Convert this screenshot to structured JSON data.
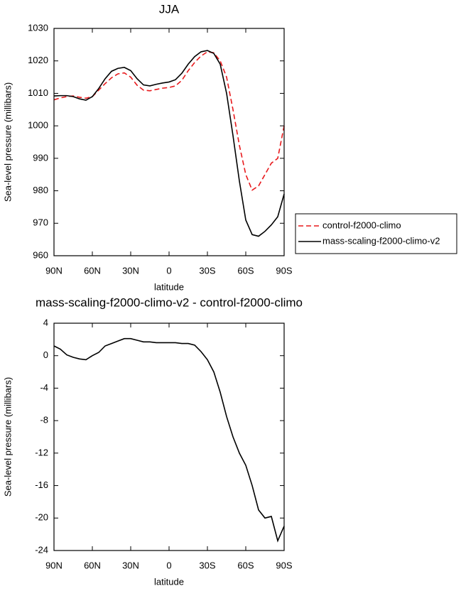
{
  "chart_data": [
    {
      "type": "line",
      "title": "JJA",
      "x_label": "latitude",
      "y_label": "Sea-level pressure (millibars)",
      "x": [
        90,
        85,
        80,
        75,
        70,
        65,
        60,
        55,
        50,
        45,
        40,
        35,
        30,
        25,
        20,
        15,
        10,
        5,
        0,
        -5,
        -10,
        -15,
        -20,
        -25,
        -30,
        -35,
        -40,
        -45,
        -50,
        -55,
        -60,
        -65,
        -70,
        -75,
        -80,
        -85,
        -90
      ],
      "series": [
        {
          "name": "control-f2000-climo",
          "color": "#e8191c",
          "line_style": "dashed",
          "values": [
            1008,
            1008.6,
            1009,
            1009.2,
            1008.8,
            1008.5,
            1009,
            1011,
            1013,
            1014.8,
            1016,
            1016.3,
            1015,
            1012.5,
            1011,
            1010.8,
            1011.2,
            1011.6,
            1011.8,
            1012.3,
            1014,
            1017,
            1019.5,
            1021.5,
            1022.8,
            1022.5,
            1020,
            1015,
            1005,
            994,
            985,
            980.2,
            981.5,
            985,
            988.5,
            990,
            1000
          ]
        },
        {
          "name": "mass-scaling-f2000-climo-v2",
          "color": "#000000",
          "line_style": "solid",
          "values": [
            1009.2,
            1009.3,
            1009.3,
            1009,
            1008.3,
            1007.9,
            1009,
            1011.5,
            1014.5,
            1016.8,
            1017.7,
            1018,
            1017,
            1014.5,
            1012.6,
            1012.3,
            1012.8,
            1013.2,
            1013.5,
            1014.2,
            1016.2,
            1019,
            1021.3,
            1022.8,
            1023.2,
            1022.3,
            1019,
            1010,
            997,
            983,
            971,
            966.5,
            966,
            967.5,
            969.5,
            972,
            979
          ]
        }
      ],
      "xlim": [
        90,
        -90
      ],
      "xticks": [
        {
          "value": 90,
          "label": "90N"
        },
        {
          "value": 60,
          "label": "60N"
        },
        {
          "value": 30,
          "label": "30N"
        },
        0,
        {
          "value": -30,
          "label": "30S"
        },
        {
          "value": -60,
          "label": "60S"
        },
        {
          "value": -90,
          "label": "90S"
        }
      ],
      "ylim": [
        960,
        1030
      ],
      "yticks": [
        960,
        970,
        980,
        990,
        1000,
        1010,
        1020,
        1030
      ],
      "legend": "right"
    },
    {
      "type": "line",
      "title": "mass-scaling-f2000-climo-v2 - control-f2000-climo",
      "x_label": "latitude",
      "y_label": "Sea-level pressure (millibars)",
      "x": [
        90,
        85,
        80,
        75,
        70,
        65,
        60,
        55,
        50,
        45,
        40,
        35,
        30,
        25,
        20,
        15,
        10,
        5,
        0,
        -5,
        -10,
        -15,
        -20,
        -25,
        -30,
        -35,
        -40,
        -45,
        -50,
        -55,
        -60,
        -65,
        -70,
        -75,
        -80,
        -85,
        -90
      ],
      "series": [
        {
          "color": "#000000",
          "line_style": "solid",
          "values": [
            1.2,
            0.8,
            0.1,
            -0.2,
            -0.4,
            -0.5,
            0,
            0.4,
            1.2,
            1.5,
            1.8,
            2.1,
            2.1,
            1.9,
            1.7,
            1.7,
            1.6,
            1.6,
            1.6,
            1.6,
            1.5,
            1.5,
            1.3,
            0.5,
            -0.5,
            -2,
            -4.5,
            -7.5,
            -10,
            -12,
            -13.5,
            -16,
            -19,
            -20,
            -19.8,
            -22.8,
            -21
          ]
        }
      ],
      "xlim": [
        90,
        -90
      ],
      "xticks": [
        {
          "value": 90,
          "label": "90N"
        },
        {
          "value": 60,
          "label": "60N"
        },
        {
          "value": 30,
          "label": "30N"
        },
        0,
        {
          "value": -30,
          "label": "30S"
        },
        {
          "value": -60,
          "label": "60S"
        },
        {
          "value": -90,
          "label": "90S"
        }
      ],
      "ylim": [
        -24,
        4
      ],
      "yticks": [
        -24,
        -20,
        -16,
        -12,
        -8,
        -4,
        0,
        4
      ]
    }
  ]
}
